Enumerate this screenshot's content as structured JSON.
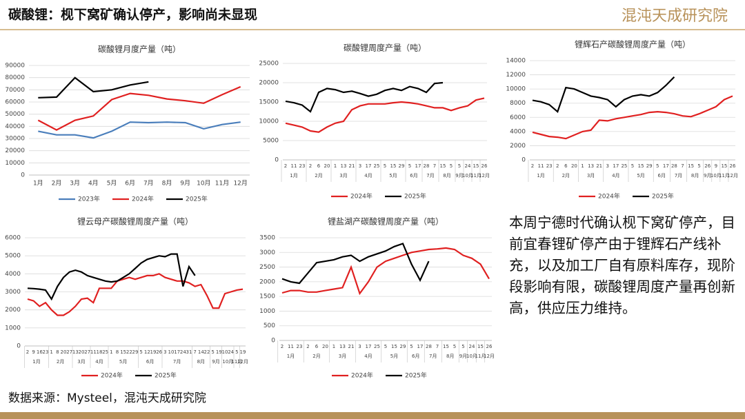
{
  "header": {
    "title": "碳酸锂：枧下窝矿确认停产，影响尚未显现",
    "logo": "混沌天成研究院"
  },
  "note": "本周宁德时代确认枧下窝矿停产，目前宜春锂矿停产由于锂辉石产线补充，以及加工厂自有原料库存，现阶段影响有限，碳酸锂周度产量再创新高，供应压力维持。",
  "source": "数据来源：Mysteel，混沌天成研究院",
  "chart_data": [
    {
      "type": "line",
      "title": "碳酸锂月度产量（吨）",
      "categories": [
        "1月",
        "2月",
        "3月",
        "4月",
        "5月",
        "6月",
        "7月",
        "8月",
        "9月",
        "10月",
        "11月",
        "12月"
      ],
      "ylim": [
        0,
        90000
      ],
      "yticks": [
        0,
        10000,
        20000,
        30000,
        40000,
        50000,
        60000,
        70000,
        80000,
        90000
      ],
      "grid": true,
      "series": [
        {
          "name": "2023年",
          "color": "#4a7ebb",
          "values": [
            36000,
            33000,
            33000,
            30500,
            36000,
            43500,
            43000,
            43500,
            43000,
            38000,
            41500,
            43500
          ]
        },
        {
          "name": "2024年",
          "color": "#e02020",
          "values": [
            45000,
            37000,
            45000,
            48500,
            62000,
            67000,
            65500,
            62500,
            61000,
            59000,
            66000,
            72500
          ]
        },
        {
          "name": "2025年",
          "color": "#000000",
          "values": [
            63500,
            64000,
            80000,
            68500,
            70000,
            74000,
            76500,
            null,
            null,
            null,
            null,
            null
          ]
        }
      ]
    },
    {
      "type": "line",
      "title": "碳酸锂周度产量（吨）",
      "categories": [
        "2",
        "11",
        "23",
        "2",
        "6",
        "20",
        "1",
        "13",
        "21",
        "3",
        "17",
        "25",
        "5",
        "15",
        "29",
        "5",
        "17",
        "28",
        "7",
        "15",
        "5",
        "5",
        "24",
        "15",
        "26"
      ],
      "months": [
        "1月",
        null,
        null,
        "2月",
        null,
        null,
        "3月",
        null,
        null,
        "4月",
        null,
        null,
        "5月",
        null,
        null,
        "6月",
        null,
        "7月",
        null,
        "8月",
        null,
        "9月",
        "10月",
        "11月",
        "12月"
      ],
      "ylim": [
        0,
        25000
      ],
      "yticks": [
        0,
        5000,
        10000,
        15000,
        20000,
        25000
      ],
      "grid": true,
      "series": [
        {
          "name": "2024年",
          "color": "#e02020",
          "values": [
            9500,
            9000,
            8500,
            7500,
            7200,
            8500,
            9500,
            10000,
            13000,
            14000,
            14500,
            14500,
            14500,
            14800,
            15000,
            14800,
            14500,
            14000,
            13500,
            13500,
            12800,
            13500,
            14000,
            15500,
            16000
          ]
        },
        {
          "name": "2025年",
          "color": "#000000",
          "values": [
            15200,
            14800,
            14200,
            12500,
            17500,
            18500,
            18200,
            17500,
            17800,
            17200,
            16500,
            17000,
            18000,
            18500,
            18000,
            19000,
            18500,
            17500,
            19800,
            20000,
            null,
            null,
            null,
            null,
            null
          ]
        }
      ]
    },
    {
      "type": "line",
      "title": "锂辉石产碳酸锂周度产量（吨）",
      "categories": [
        "2",
        "11",
        "23",
        "2",
        "6",
        "20",
        "1",
        "13",
        "21",
        "3",
        "17",
        "25",
        "5",
        "15",
        "29",
        "5",
        "17",
        "28",
        "7",
        "15",
        "5",
        "26",
        "9",
        "15",
        "26"
      ],
      "months": [
        "1月",
        null,
        null,
        "2月",
        null,
        null,
        "3月",
        null,
        null,
        "4月",
        null,
        null,
        "5月",
        null,
        null,
        "6月",
        null,
        "7月",
        null,
        "8月",
        null,
        "9月",
        "10月",
        "11月",
        "12月"
      ],
      "ylim": [
        0,
        14000
      ],
      "yticks": [
        0,
        2000,
        4000,
        6000,
        8000,
        10000,
        12000,
        14000
      ],
      "grid": true,
      "series": [
        {
          "name": "2024年",
          "color": "#e02020",
          "values": [
            3900,
            3600,
            3300,
            3200,
            3000,
            3500,
            4000,
            4200,
            5600,
            5500,
            5800,
            6000,
            6200,
            6400,
            6700,
            6800,
            6700,
            6500,
            6200,
            6100,
            6500,
            7000,
            7500,
            8500,
            9000
          ]
        },
        {
          "name": "2025年",
          "color": "#000000",
          "values": [
            8400,
            8200,
            7800,
            6800,
            10200,
            10000,
            9500,
            9000,
            8800,
            8500,
            7500,
            8500,
            9000,
            9200,
            9000,
            9500,
            10500,
            11700,
            null,
            null,
            null,
            null,
            null,
            null,
            null
          ]
        }
      ]
    },
    {
      "type": "line",
      "title": "锂云母产碳酸锂周度产量（吨）",
      "categories": [
        "2",
        "9",
        "16",
        "23",
        "1",
        "8",
        "20",
        "27",
        "13",
        "20",
        "27",
        "11",
        "18",
        "25",
        "1",
        "8",
        "15",
        "22",
        "29",
        "5",
        "12",
        "19",
        "26",
        "3",
        "10",
        "17",
        "24",
        "31",
        "7",
        "14",
        "22",
        "5",
        "19",
        "10",
        "24",
        "5",
        "19"
      ],
      "months": [
        "1月",
        null,
        null,
        null,
        "2月",
        null,
        null,
        null,
        "3月",
        null,
        null,
        "4月",
        null,
        null,
        "5月",
        null,
        null,
        null,
        null,
        "6月",
        null,
        null,
        null,
        "7月",
        null,
        null,
        null,
        null,
        "8月",
        null,
        null,
        "9月",
        null,
        "10月",
        null,
        "11月",
        "12月"
      ],
      "ylim": [
        0,
        6000
      ],
      "yticks": [
        0,
        1000,
        2000,
        3000,
        4000,
        5000,
        6000
      ],
      "grid": true,
      "series": [
        {
          "name": "2024年",
          "color": "#e02020",
          "values": [
            2600,
            2500,
            2200,
            2400,
            2000,
            1700,
            1700,
            1900,
            2200,
            2600,
            2650,
            2400,
            3200,
            3200,
            3200,
            3600,
            3700,
            3800,
            3700,
            3800,
            3900,
            3900,
            4000,
            3800,
            3700,
            3600,
            3600,
            3500,
            3300,
            3400,
            2800,
            2100,
            2100,
            2900,
            3000,
            3100,
            3150
          ]
        },
        {
          "name": "2025年",
          "color": "#000000",
          "values": [
            3200,
            3180,
            3150,
            3100,
            2600,
            3300,
            3800,
            4100,
            4200,
            4100,
            3900,
            3800,
            3700,
            3600,
            3550,
            3600,
            3800,
            4000,
            4300,
            4600,
            4800,
            4900,
            5000,
            4950,
            5100,
            5100,
            3300,
            4400,
            3900,
            null,
            null,
            null,
            null,
            null,
            null,
            null,
            null
          ]
        }
      ]
    },
    {
      "type": "line",
      "title": "锂盐湖产碳酸锂周度产量（吨）",
      "categories": [
        "2",
        "11",
        "23",
        "2",
        "6",
        "20",
        "1",
        "13",
        "21",
        "3",
        "17",
        "25",
        "5",
        "15",
        "29",
        "5",
        "17",
        "28",
        "7",
        "15",
        "5",
        "5",
        "24",
        "15",
        "26"
      ],
      "months": [
        "1月",
        null,
        null,
        "2月",
        null,
        null,
        "3月",
        null,
        null,
        "4月",
        null,
        null,
        "5月",
        null,
        null,
        "6月",
        null,
        "7月",
        null,
        "8月",
        null,
        "9月",
        "10月",
        "11月",
        "12月"
      ],
      "ylim": [
        0,
        3500
      ],
      "yticks": [
        0,
        500,
        1000,
        1500,
        2000,
        2500,
        3000,
        3500
      ],
      "grid": true,
      "series": [
        {
          "name": "2024年",
          "color": "#e02020",
          "values": [
            1620,
            1700,
            1700,
            1650,
            1650,
            1700,
            1750,
            1800,
            2500,
            1600,
            2000,
            2500,
            2700,
            2800,
            2900,
            3000,
            3050,
            3100,
            3120,
            3150,
            3100,
            2900,
            2800,
            2600,
            2100
          ]
        },
        {
          "name": "2025年",
          "color": "#000000",
          "values": [
            2100,
            2000,
            1950,
            2300,
            2650,
            2700,
            2750,
            2850,
            2900,
            2700,
            2850,
            2950,
            3050,
            3200,
            3300,
            2600,
            2050,
            2700,
            null,
            null,
            null,
            null,
            null,
            null,
            null
          ]
        }
      ]
    }
  ]
}
